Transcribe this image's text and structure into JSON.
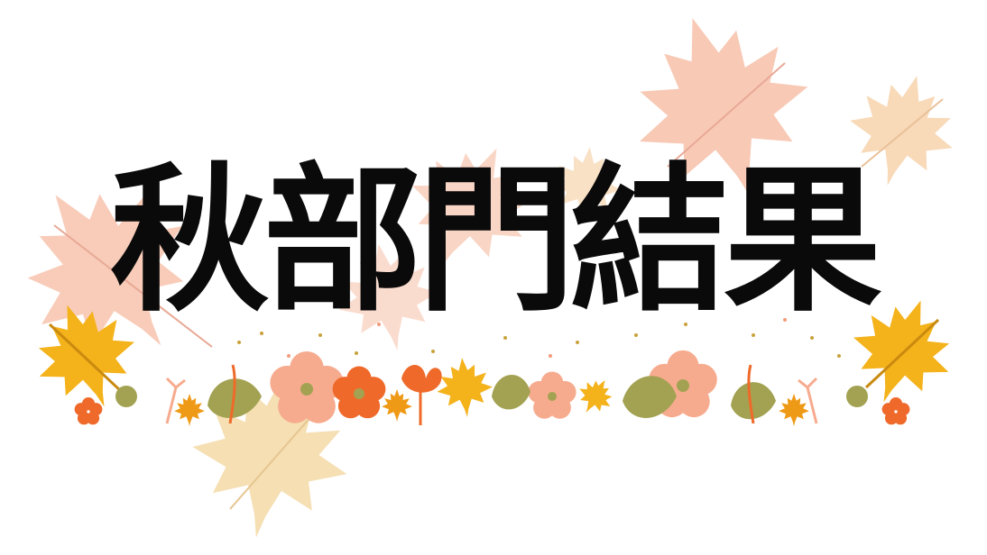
{
  "title": "秋部門結果",
  "colors": {
    "title_text": "#0a0a0a",
    "big_leaf_pink": "#f7c3ad",
    "big_leaf_peach": "#f8d9b8",
    "big_leaf_cream": "#f5dfb3",
    "maple_yellow": "#f4b21b",
    "maple_orange": "#ef9a16",
    "flower_pink": "#f7ab8e",
    "flower_orange": "#ef6a2a",
    "leaf_olive": "#a3a252",
    "dot_gold": "#c9a23c"
  },
  "icons": [
    "maple-leaf-icon",
    "flower-icon",
    "leaf-icon",
    "sprig-icon"
  ]
}
